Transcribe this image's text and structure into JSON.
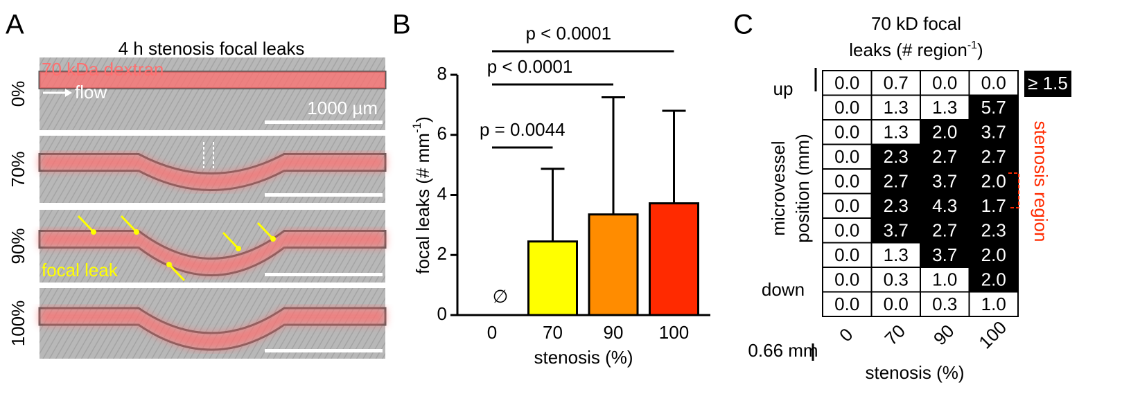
{
  "panel_a": {
    "letter": "A",
    "title": "4 h stenosis focal leaks",
    "dye_label": "70 kDa dextran",
    "flow_label": "flow",
    "scale_label": "1000 µm",
    "focal_label": "focal leak",
    "rows": [
      "0%",
      "70%",
      "90%",
      "100%"
    ]
  },
  "chart_data": [
    {
      "type": "bar",
      "letter": "B",
      "categories": [
        "0",
        "70",
        "90",
        "100"
      ],
      "values": [
        0,
        2.45,
        3.35,
        3.72
      ],
      "errors": [
        0,
        2.42,
        3.9,
        3.08
      ],
      "colors": [
        "#ffffff",
        "#ffff00",
        "#ff8c00",
        "#ff2a00"
      ],
      "ylim": [
        0,
        8
      ],
      "yticks": [
        0,
        2,
        4,
        6,
        8
      ],
      "y_label": [
        "focal leaks (# mm",
        "-1",
        ")"
      ],
      "x_label": "stenosis (%)",
      "empty_marker": "∅",
      "comparisons": [
        {
          "label": "p = 0.0044",
          "from": 0,
          "to": 1
        },
        {
          "label": "p < 0.0001",
          "from": 0,
          "to": 2
        },
        {
          "label": "p < 0.0001",
          "from": 0,
          "to": 3
        }
      ]
    },
    {
      "type": "heatmap",
      "letter": "C",
      "title": [
        "70 kD focal",
        "leaks (# region",
        "-1",
        ")"
      ],
      "categories": [
        "0",
        "70",
        "90",
        "100"
      ],
      "x_label": "stenosis (%)",
      "y_label": [
        "microvessel",
        "position (mm)"
      ],
      "top_label": "up",
      "bottom_label": "down",
      "scale_label": "0.66 mm",
      "region_label": "stenosis region",
      "threshold": 1.5,
      "threshold_label": "≥ 1.5",
      "high_color": "#000000",
      "low_color": "#ffffff",
      "values": [
        [
          0,
          0.7,
          0,
          0
        ],
        [
          0,
          1.3,
          1.3,
          5.7
        ],
        [
          0,
          1.3,
          2,
          3.7
        ],
        [
          0,
          2.3,
          2.7,
          2.7
        ],
        [
          0,
          2.7,
          3.7,
          2
        ],
        [
          0,
          2.3,
          4.3,
          1.7
        ],
        [
          0,
          3.7,
          2.7,
          2.3
        ],
        [
          0,
          1.3,
          3.7,
          2
        ],
        [
          0,
          0.3,
          1,
          2
        ],
        [
          0,
          0,
          0.3,
          1
        ]
      ],
      "value_labels": [
        [
          "0.0",
          "0.7",
          "0.0",
          "0.0"
        ],
        [
          "0.0",
          "1.3",
          "1.3",
          "5.7"
        ],
        [
          "0.0",
          "1.3",
          "2.0",
          "3.7"
        ],
        [
          "0.0",
          "2.3",
          "2.7",
          "2.7"
        ],
        [
          "0.0",
          "2.7",
          "3.7",
          "2.0"
        ],
        [
          "0.0",
          "2.3",
          "4.3",
          "1.7"
        ],
        [
          "0.0",
          "3.7",
          "2.7",
          "2.3"
        ],
        [
          "0.0",
          "1.3",
          "3.7",
          "2.0"
        ],
        [
          "0.0",
          "0.3",
          "1.0",
          "2.0"
        ],
        [
          "0.0",
          "0.0",
          "0.3",
          "1.0"
        ]
      ]
    }
  ]
}
